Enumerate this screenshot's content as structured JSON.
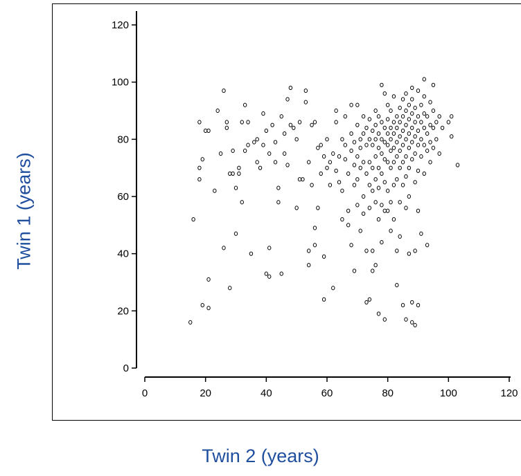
{
  "chart_data": {
    "type": "scatter",
    "title": "",
    "xlabel": "Twin 2 (years)",
    "ylabel": "Twin 1 (years)",
    "xlim": [
      0,
      120
    ],
    "ylim": [
      0,
      120
    ],
    "xticks": [
      "0",
      "20",
      "40",
      "60",
      "80",
      "100",
      "120"
    ],
    "yticks": [
      "0",
      "20",
      "40",
      "60",
      "80",
      "100",
      "120"
    ],
    "grid": false,
    "marker": "hollow-circle",
    "marker_color": "#000000",
    "label_color": "#1f4e9e",
    "points": [
      [
        15,
        16
      ],
      [
        16,
        52
      ],
      [
        18,
        86
      ],
      [
        18,
        70
      ],
      [
        18,
        66
      ],
      [
        19,
        73
      ],
      [
        19,
        22
      ],
      [
        20,
        83
      ],
      [
        21,
        21
      ],
      [
        21,
        31
      ],
      [
        21,
        83
      ],
      [
        23,
        62
      ],
      [
        24,
        90
      ],
      [
        25,
        75
      ],
      [
        26,
        97
      ],
      [
        26,
        42
      ],
      [
        27,
        86
      ],
      [
        27,
        84
      ],
      [
        28,
        28
      ],
      [
        28,
        68
      ],
      [
        29,
        68
      ],
      [
        29,
        76
      ],
      [
        30,
        63
      ],
      [
        30,
        47
      ],
      [
        31,
        68
      ],
      [
        31,
        70
      ],
      [
        32,
        58
      ],
      [
        32,
        86
      ],
      [
        33,
        76
      ],
      [
        33,
        92
      ],
      [
        34,
        86
      ],
      [
        34,
        78
      ],
      [
        35,
        40
      ],
      [
        36,
        79
      ],
      [
        37,
        72
      ],
      [
        37,
        80
      ],
      [
        38,
        70
      ],
      [
        39,
        89
      ],
      [
        39,
        78
      ],
      [
        40,
        33
      ],
      [
        40,
        83
      ],
      [
        41,
        32
      ],
      [
        41,
        42
      ],
      [
        41,
        75
      ],
      [
        42,
        85
      ],
      [
        43,
        72
      ],
      [
        43,
        79
      ],
      [
        44,
        58
      ],
      [
        44,
        63
      ],
      [
        45,
        33
      ],
      [
        45,
        88
      ],
      [
        46,
        75
      ],
      [
        46,
        82
      ],
      [
        47,
        94
      ],
      [
        47,
        71
      ],
      [
        48,
        85
      ],
      [
        48,
        98
      ],
      [
        49,
        84
      ],
      [
        50,
        56
      ],
      [
        50,
        80
      ],
      [
        51,
        86
      ],
      [
        51,
        66
      ],
      [
        52,
        66
      ],
      [
        53,
        93
      ],
      [
        53,
        97
      ],
      [
        54,
        36
      ],
      [
        54,
        41
      ],
      [
        54,
        72
      ],
      [
        55,
        64
      ],
      [
        55,
        85
      ],
      [
        56,
        86
      ],
      [
        56,
        49
      ],
      [
        56,
        43
      ],
      [
        57,
        77
      ],
      [
        57,
        56
      ],
      [
        58,
        68
      ],
      [
        58,
        78
      ],
      [
        59,
        24
      ],
      [
        59,
        39
      ],
      [
        59,
        74
      ],
      [
        60,
        70
      ],
      [
        60,
        80
      ],
      [
        61,
        72
      ],
      [
        61,
        64
      ],
      [
        62,
        75
      ],
      [
        62,
        28
      ],
      [
        63,
        86
      ],
      [
        63,
        69
      ],
      [
        63,
        90
      ],
      [
        64,
        74
      ],
      [
        64,
        65
      ],
      [
        65,
        80
      ],
      [
        65,
        62
      ],
      [
        65,
        52
      ],
      [
        66,
        78
      ],
      [
        66,
        73
      ],
      [
        66,
        88
      ],
      [
        67,
        55
      ],
      [
        67,
        68
      ],
      [
        67,
        50
      ],
      [
        68,
        92
      ],
      [
        68,
        82
      ],
      [
        68,
        76
      ],
      [
        68,
        43
      ],
      [
        69,
        79
      ],
      [
        69,
        71
      ],
      [
        69,
        64
      ],
      [
        69,
        34
      ],
      [
        70,
        92
      ],
      [
        70,
        85
      ],
      [
        70,
        74
      ],
      [
        70,
        66
      ],
      [
        70,
        57
      ],
      [
        71,
        80
      ],
      [
        71,
        77
      ],
      [
        71,
        70
      ],
      [
        71,
        48
      ],
      [
        72,
        88
      ],
      [
        72,
        82
      ],
      [
        72,
        72
      ],
      [
        72,
        60
      ],
      [
        72,
        54
      ],
      [
        73,
        84
      ],
      [
        73,
        78
      ],
      [
        73,
        68
      ],
      [
        73,
        41
      ],
      [
        73,
        23
      ],
      [
        74,
        87
      ],
      [
        74,
        80
      ],
      [
        74,
        72
      ],
      [
        74,
        64
      ],
      [
        74,
        56
      ],
      [
        74,
        24
      ],
      [
        75,
        83
      ],
      [
        75,
        78
      ],
      [
        75,
        70
      ],
      [
        75,
        62
      ],
      [
        75,
        41
      ],
      [
        75,
        34
      ],
      [
        76,
        90
      ],
      [
        76,
        85
      ],
      [
        76,
        80
      ],
      [
        76,
        74
      ],
      [
        76,
        66
      ],
      [
        76,
        58
      ],
      [
        76,
        36
      ],
      [
        77,
        88
      ],
      [
        77,
        82
      ],
      [
        77,
        77
      ],
      [
        77,
        70
      ],
      [
        77,
        63
      ],
      [
        77,
        52
      ],
      [
        77,
        19
      ],
      [
        78,
        99
      ],
      [
        78,
        86
      ],
      [
        78,
        80
      ],
      [
        78,
        75
      ],
      [
        78,
        68
      ],
      [
        78,
        57
      ],
      [
        78,
        44
      ],
      [
        79,
        96
      ],
      [
        79,
        84
      ],
      [
        79,
        79
      ],
      [
        79,
        73
      ],
      [
        79,
        65
      ],
      [
        79,
        55
      ],
      [
        79,
        17
      ],
      [
        80,
        92
      ],
      [
        80,
        87
      ],
      [
        80,
        82
      ],
      [
        80,
        78
      ],
      [
        80,
        72
      ],
      [
        80,
        62
      ],
      [
        80,
        55
      ],
      [
        81,
        90
      ],
      [
        81,
        84
      ],
      [
        81,
        80
      ],
      [
        81,
        76
      ],
      [
        81,
        70
      ],
      [
        81,
        58
      ],
      [
        81,
        48
      ],
      [
        82,
        95
      ],
      [
        82,
        86
      ],
      [
        82,
        82
      ],
      [
        82,
        77
      ],
      [
        82,
        72
      ],
      [
        82,
        64
      ],
      [
        82,
        52
      ],
      [
        83,
        88
      ],
      [
        83,
        84
      ],
      [
        83,
        79
      ],
      [
        83,
        74
      ],
      [
        83,
        66
      ],
      [
        83,
        41
      ],
      [
        83,
        29
      ],
      [
        84,
        91
      ],
      [
        84,
        86
      ],
      [
        84,
        81
      ],
      [
        84,
        76
      ],
      [
        84,
        70
      ],
      [
        84,
        58
      ],
      [
        84,
        46
      ],
      [
        85,
        94
      ],
      [
        85,
        88
      ],
      [
        85,
        83
      ],
      [
        85,
        78
      ],
      [
        85,
        72
      ],
      [
        85,
        64
      ],
      [
        85,
        22
      ],
      [
        86,
        96
      ],
      [
        86,
        90
      ],
      [
        86,
        85
      ],
      [
        86,
        80
      ],
      [
        86,
        74
      ],
      [
        86,
        67
      ],
      [
        86,
        56
      ],
      [
        86,
        17
      ],
      [
        87,
        92
      ],
      [
        87,
        87
      ],
      [
        87,
        82
      ],
      [
        87,
        77
      ],
      [
        87,
        70
      ],
      [
        87,
        60
      ],
      [
        87,
        40
      ],
      [
        88,
        98
      ],
      [
        88,
        94
      ],
      [
        88,
        89
      ],
      [
        88,
        84
      ],
      [
        88,
        79
      ],
      [
        88,
        73
      ],
      [
        88,
        23
      ],
      [
        88,
        16
      ],
      [
        89,
        91
      ],
      [
        89,
        86
      ],
      [
        89,
        81
      ],
      [
        89,
        75
      ],
      [
        89,
        65
      ],
      [
        89,
        41
      ],
      [
        89,
        15
      ],
      [
        90,
        97
      ],
      [
        90,
        88
      ],
      [
        90,
        83
      ],
      [
        90,
        78
      ],
      [
        90,
        69
      ],
      [
        90,
        55
      ],
      [
        90,
        22
      ],
      [
        91,
        92
      ],
      [
        91,
        86
      ],
      [
        91,
        80
      ],
      [
        91,
        74
      ],
      [
        91,
        47
      ],
      [
        92,
        101
      ],
      [
        92,
        95
      ],
      [
        92,
        89
      ],
      [
        92,
        84
      ],
      [
        92,
        78
      ],
      [
        92,
        68
      ],
      [
        93,
        88
      ],
      [
        93,
        82
      ],
      [
        93,
        76
      ],
      [
        93,
        43
      ],
      [
        94,
        93
      ],
      [
        94,
        85
      ],
      [
        94,
        79
      ],
      [
        94,
        72
      ],
      [
        95,
        99
      ],
      [
        95,
        90
      ],
      [
        95,
        84
      ],
      [
        95,
        77
      ],
      [
        96,
        86
      ],
      [
        96,
        80
      ],
      [
        97,
        88
      ],
      [
        97,
        75
      ],
      [
        98,
        84
      ],
      [
        100,
        86
      ],
      [
        101,
        88
      ],
      [
        101,
        81
      ],
      [
        103,
        71
      ]
    ]
  }
}
